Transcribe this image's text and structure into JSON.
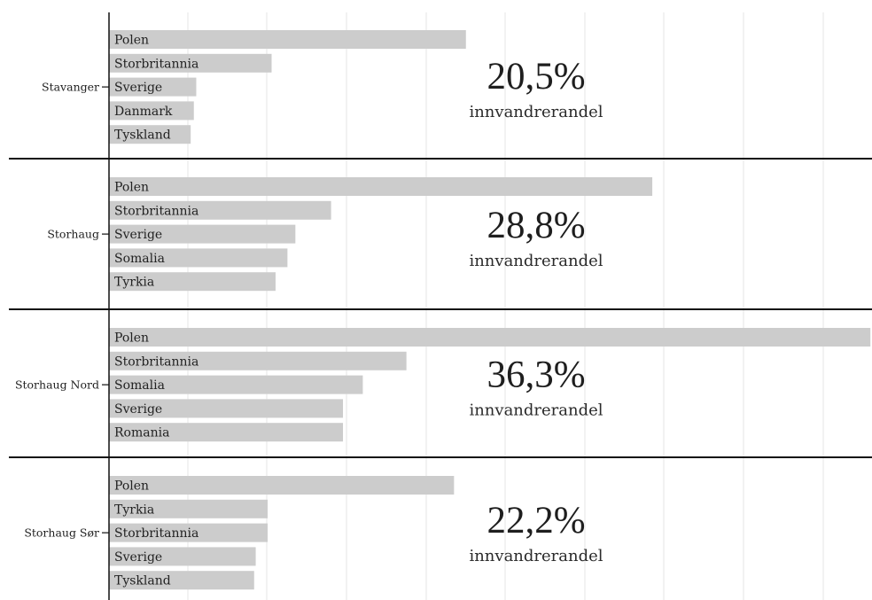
{
  "chart_data": {
    "type": "bar",
    "orientation": "horizontal",
    "grid": true,
    "groups": [
      {
        "name": "Stavanger",
        "share": "20,5%",
        "share_label": "innvandrerandel",
        "categories": [
          "Polen",
          "Storbritannia",
          "Sverige",
          "Danmark",
          "Tyskland"
        ],
        "values": [
          4.5,
          2.05,
          1.1,
          1.07,
          1.03
        ]
      },
      {
        "name": "Storhaug",
        "share": "28,8%",
        "share_label": "innvandrerandel",
        "categories": [
          "Polen",
          "Storbritannia",
          "Sverige",
          "Somalia",
          "Tyrkia"
        ],
        "values": [
          6.85,
          2.8,
          2.35,
          2.25,
          2.1
        ]
      },
      {
        "name": "Storhaug Nord",
        "share": "36,3%",
        "share_label": "innvandrerandel",
        "categories": [
          "Polen",
          "Storbritannia",
          "Somalia",
          "Sverige",
          "Romania"
        ],
        "values": [
          9.6,
          3.75,
          3.2,
          2.95,
          2.95
        ]
      },
      {
        "name": "Storhaug Sør",
        "share": "22,2%",
        "share_label": "innvandrerandel",
        "categories": [
          "Polen",
          "Tyrkia",
          "Storbritannia",
          "Sverige",
          "Tyskland"
        ],
        "values": [
          4.35,
          2.0,
          2.0,
          1.85,
          1.83
        ]
      }
    ]
  }
}
